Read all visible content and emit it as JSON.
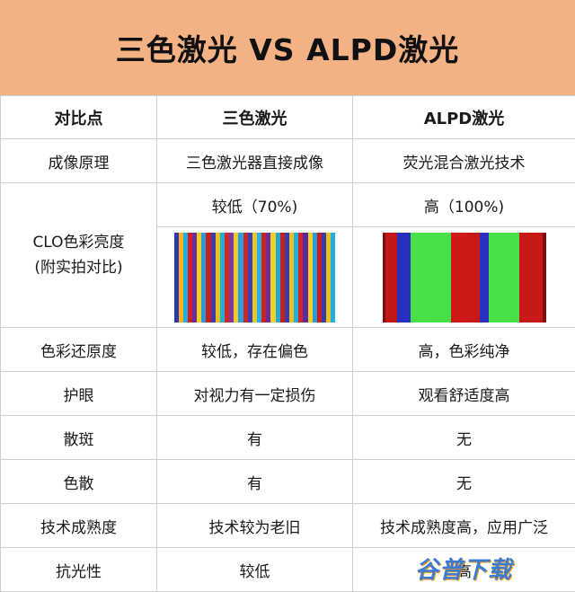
{
  "title": "三色激光 VS ALPD激光",
  "headers": [
    "对比点",
    "三色激光",
    "ALPD激光"
  ],
  "rows": {
    "principle": {
      "label": "成像原理",
      "a": "三色激光器直接成像",
      "b": "荧光混合激光技术"
    },
    "brightness": {
      "label": "CLO色彩亮度\n(附实拍对比)",
      "a": "较低（70%)",
      "b": "高（100%)"
    },
    "color_fidelity": {
      "label": "色彩还原度",
      "a": "较低，存在偏色",
      "b": "高，色彩纯净"
    },
    "eye_care": {
      "label": "护眼",
      "a": "对视力有一定损伤",
      "b": "观看舒适度高"
    },
    "speckle": {
      "label": "散斑",
      "a": "有",
      "b": "无"
    },
    "dispersion": {
      "label": "色散",
      "a": "有",
      "b": "无"
    },
    "maturity": {
      "label": "技术成熟度",
      "a": "技术较为老旧",
      "b": "技术成熟度高，应用广泛"
    },
    "ambient": {
      "label": "抗光性",
      "a": "较低",
      "b": "高"
    }
  },
  "photo_a_colors": [
    "#2a3aa8",
    "#ffb020",
    "#20b0e0",
    "#d02020",
    "#6a2aa0",
    "#f0d020",
    "#2a9ad8",
    "#c82020",
    "#3a3aa8",
    "#e8c020",
    "#20b0d8",
    "#d02828",
    "#7a3aa0",
    "#f0c830",
    "#2aa0e0",
    "#c82828",
    "#3a40b0",
    "#e8c828",
    "#28b0e0",
    "#d02020",
    "#6a2aa0",
    "#f0d020",
    "#20a8d8",
    "#c82020",
    "#3a3aa8",
    "#e8c020",
    "#20b0e0",
    "#d02828",
    "#5a2aa0",
    "#f0d020",
    "#2a9ad8",
    "#c82020",
    "#3a3aa8",
    "#e8c020",
    "#20b0e0"
  ],
  "photo_b_colors": [
    "#7a1010",
    "#c01818",
    "#2830c0",
    "#4ae04a",
    "#48e048",
    "#d01818",
    "#c81818",
    "#2a30c0",
    "#4ae04a",
    "#48e048",
    "#c81818",
    "#c81818",
    "#7a1010"
  ],
  "photo_b_widths": [
    4,
    14,
    16,
    22,
    26,
    20,
    14,
    10,
    22,
    14,
    16,
    12,
    4
  ],
  "watermark": "谷普下载"
}
